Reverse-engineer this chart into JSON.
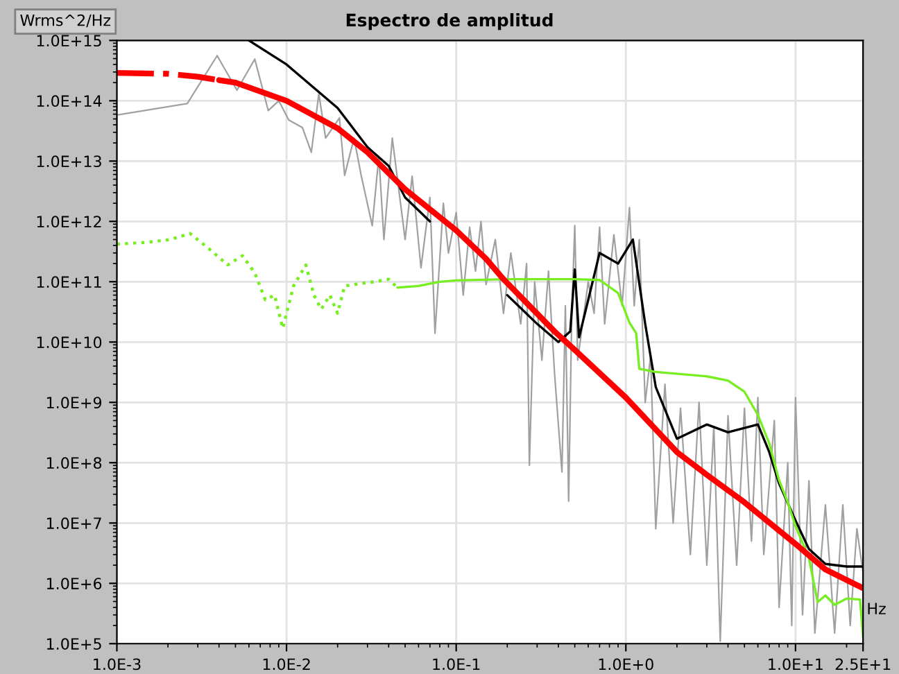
{
  "chart_data": {
    "type": "line",
    "title": "Espectro de amplitud",
    "ylabel": "Wrms^2/Hz",
    "xlabel": "Hz",
    "log": "xy",
    "grid": true,
    "xlim": [
      0.001,
      25
    ],
    "ylim": [
      100000.0,
      1000000000000000.0
    ],
    "xticks": [
      {
        "value": 0.001,
        "label": "1.0E-3"
      },
      {
        "value": 0.01,
        "label": "1.0E-2"
      },
      {
        "value": 0.1,
        "label": "1.0E-1"
      },
      {
        "value": 1,
        "label": "1.0E+0"
      },
      {
        "value": 10,
        "label": "1.0E+1"
      },
      {
        "value": 25,
        "label": "2.5E+1"
      }
    ],
    "yticks": [
      {
        "value": 100000.0,
        "label": "1.0E+5"
      },
      {
        "value": 1000000.0,
        "label": "1.0E+6"
      },
      {
        "value": 10000000.0,
        "label": "1.0E+7"
      },
      {
        "value": 100000000.0,
        "label": "1.0E+8"
      },
      {
        "value": 1000000000.0,
        "label": "1.0E+9"
      },
      {
        "value": 10000000000.0,
        "label": "1.0E+10"
      },
      {
        "value": 100000000000.0,
        "label": "1.0E+11"
      },
      {
        "value": 1000000000000.0,
        "label": "1.0E+12"
      },
      {
        "value": 10000000000000.0,
        "label": "1.0E+13"
      },
      {
        "value": 100000000000000.0,
        "label": "1.0E+14"
      },
      {
        "value": 1000000000000000.0,
        "label": "1.0E+15"
      }
    ],
    "series": [
      {
        "color": "#a0a0a0",
        "line_style": "solid",
        "x": [
          0.001,
          0.0026,
          0.0039,
          0.0051,
          0.0065,
          0.0078,
          0.009,
          0.0103,
          0.0124,
          0.014,
          0.0155,
          0.017,
          0.0205,
          0.022,
          0.025,
          0.0275,
          0.032,
          0.035,
          0.0375,
          0.042,
          0.05,
          0.055,
          0.062,
          0.07,
          0.075,
          0.084,
          0.09,
          0.1,
          0.11,
          0.12,
          0.13,
          0.14,
          0.15,
          0.17,
          0.19,
          0.21,
          0.24,
          0.26,
          0.27,
          0.29,
          0.32,
          0.35,
          0.38,
          0.42,
          0.44,
          0.46,
          0.48,
          0.5,
          0.52,
          0.6,
          0.65,
          0.7,
          0.75,
          0.85,
          0.95,
          1.05,
          1.12,
          1.2,
          1.3,
          1.4,
          1.5,
          1.7,
          1.9,
          2.1,
          2.4,
          2.7,
          3,
          3.3,
          3.6,
          4,
          4.5,
          5,
          5.5,
          6,
          6.5,
          7.5,
          8,
          9,
          9.5,
          10,
          11,
          12,
          13,
          15,
          17,
          19,
          21,
          23,
          25
        ],
        "values": [
          58000000000000.0,
          90000000000000.0,
          560000000000000.0,
          150000000000000.0,
          490000000000000.0,
          69000000000000.0,
          100000000000000.0,
          48000000000000.0,
          36000000000000.0,
          14000000000000.0,
          130000000000000.0,
          24000000000000.0,
          52000000000000.0,
          5800000000000.0,
          24000000000000.0,
          5900000000000.0,
          850000000000.0,
          12000000000000.0,
          500000000000.0,
          24000000000000.0,
          500000000000.0,
          5600000000000.0,
          170000000000.0,
          2500000000000.0,
          14000000000.0,
          2000000000000.0,
          300000000000.0,
          1400000000000.0,
          60000000000.0,
          800000000000.0,
          150000000000.0,
          1000000000000.0,
          90000000000.0,
          500000000000.0,
          30000000000.0,
          300000000000.0,
          20000000000.0,
          200000000000.0,
          90000000.0,
          100000000000.0,
          5000000000.0,
          150000000000.0,
          3000000000.0,
          70000000.0,
          40000000000.0,
          23000000.0,
          30000000000.0,
          850000000000.0,
          5000000000.0,
          100000000000.0,
          30000000000.0,
          800000000000.0,
          20000000000.0,
          600000000000.0,
          40000000000.0,
          1700000000000.0,
          40000000000.0,
          500000000000.0,
          1000000000.0,
          6000000000.0,
          8000000.0,
          2000000000.0,
          10000000.0,
          800000000.0,
          3000000.0,
          1000000000.0,
          2000000.0,
          400000000.0,
          110000.0,
          600000000.0,
          2000000.0,
          800000000.0,
          5000000.0,
          1200000000.0,
          3000000.0,
          500000000.0,
          400000.0,
          100000000.0,
          200000.0,
          1200000000.0,
          300000.0,
          50000000.0,
          150000.0,
          20000000.0,
          150000.0,
          20000000.0,
          200000.0,
          8000000.0,
          1500000.0
        ]
      },
      {
        "color": "#000000",
        "line_style": "solid",
        "x": [
          0.006,
          0.01,
          0.02,
          0.03,
          0.04,
          0.05,
          0.07,
          0.1,
          0.15,
          0.2,
          0.3,
          0.4,
          0.47,
          0.5,
          0.53,
          0.6,
          0.7,
          0.9,
          1.1,
          1.3,
          1.5,
          2,
          3,
          4,
          6,
          7,
          8,
          10,
          12,
          15,
          20,
          25
        ],
        "values": [
          1000000000000000.0,
          400000000000000.0,
          76000000000000.0,
          17000000000000.0,
          8300000000000.0,
          2500000000000.0,
          1000000000000.0,
          null,
          null,
          60000000000.0,
          20000000000.0,
          10000000000.0,
          15000000000.0,
          160000000000.0,
          12000000000.0,
          50000000000.0,
          300000000000.0,
          200000000000.0,
          500000000000.0,
          20000000000.0,
          1800000000.0,
          250000000.0,
          430000000.0,
          320000000.0,
          430000000.0,
          150000000.0,
          45000000.0,
          11000000.0,
          3700000.0,
          2100000.0,
          1900000.0,
          1900000.0
        ]
      },
      {
        "color": "#77ee22",
        "line_style": "dotted",
        "x": [
          0.001,
          0.0015,
          0.00206,
          0.0027,
          0.0035,
          0.0045,
          0.0055,
          0.0065,
          0.0075,
          0.0085,
          0.0095,
          0.011,
          0.013,
          0.0145,
          0.016,
          0.018,
          0.02,
          0.022,
          0.027,
          0.033,
          0.04,
          0.045
        ],
        "values": [
          420000000000.0,
          450000000000.0,
          500000000000.0,
          630000000000.0,
          350000000000.0,
          190000000000.0,
          270000000000.0,
          140000000000.0,
          50000000000.0,
          60000000000.0,
          17000000000.0,
          85000000000.0,
          190000000000.0,
          60000000000.0,
          35000000000.0,
          60000000000.0,
          30000000000.0,
          85000000000.0,
          93000000000.0,
          100000000000.0,
          110000000000.0,
          80000000000.0
        ]
      },
      {
        "color": "#77ee22",
        "line_style": "solid",
        "x": [
          0.045,
          0.06,
          0.08,
          0.1,
          0.2,
          0.5,
          0.7,
          0.9,
          1.05,
          1.15,
          1.2,
          1.5,
          3,
          4,
          5,
          6,
          7,
          8,
          9,
          10,
          12,
          13.5,
          15,
          17,
          20,
          24,
          25
        ],
        "values": [
          80000000000.0,
          85000000000.0,
          100000000000.0,
          105000000000.0,
          110000000000.0,
          110000000000.0,
          107000000000.0,
          65000000000.0,
          21000000000.0,
          14000000000.0,
          3600000000.0,
          3200000000.0,
          2700000000.0,
          2300000000.0,
          1500000000.0,
          620000000.0,
          210000000.0,
          51000000.0,
          22000000.0,
          8900000.0,
          2600000.0,
          490000.0,
          630000.0,
          440000.0,
          560000.0,
          540000.0,
          130000.0
        ]
      },
      {
        "color": "#ff0000",
        "line_style": "dashdot",
        "x": [
          0.001,
          0.002,
          0.003,
          0.004
        ],
        "values": [
          290000000000000.0,
          280000000000000.0,
          250000000000000.0,
          220000000000000.0
        ]
      },
      {
        "color": "#ff0000",
        "line_style": "solid",
        "x": [
          0.004,
          0.005,
          0.01,
          0.02,
          0.03,
          0.05,
          0.1,
          0.15,
          0.19,
          0.38,
          0.5,
          1,
          2,
          3,
          5,
          10,
          15,
          25
        ],
        "values": [
          220000000000000.0,
          200000000000000.0,
          100000000000000.0,
          35000000000000.0,
          14000000000000.0,
          3400000000000.0,
          710000000000.0,
          240000000000.0,
          110000000000.0,
          15000000000.0,
          7400000000.0,
          1200000000.0,
          150000000.0,
          63000000.0,
          22000000.0,
          4500000.0,
          1700000.0,
          830000.0
        ]
      }
    ]
  }
}
